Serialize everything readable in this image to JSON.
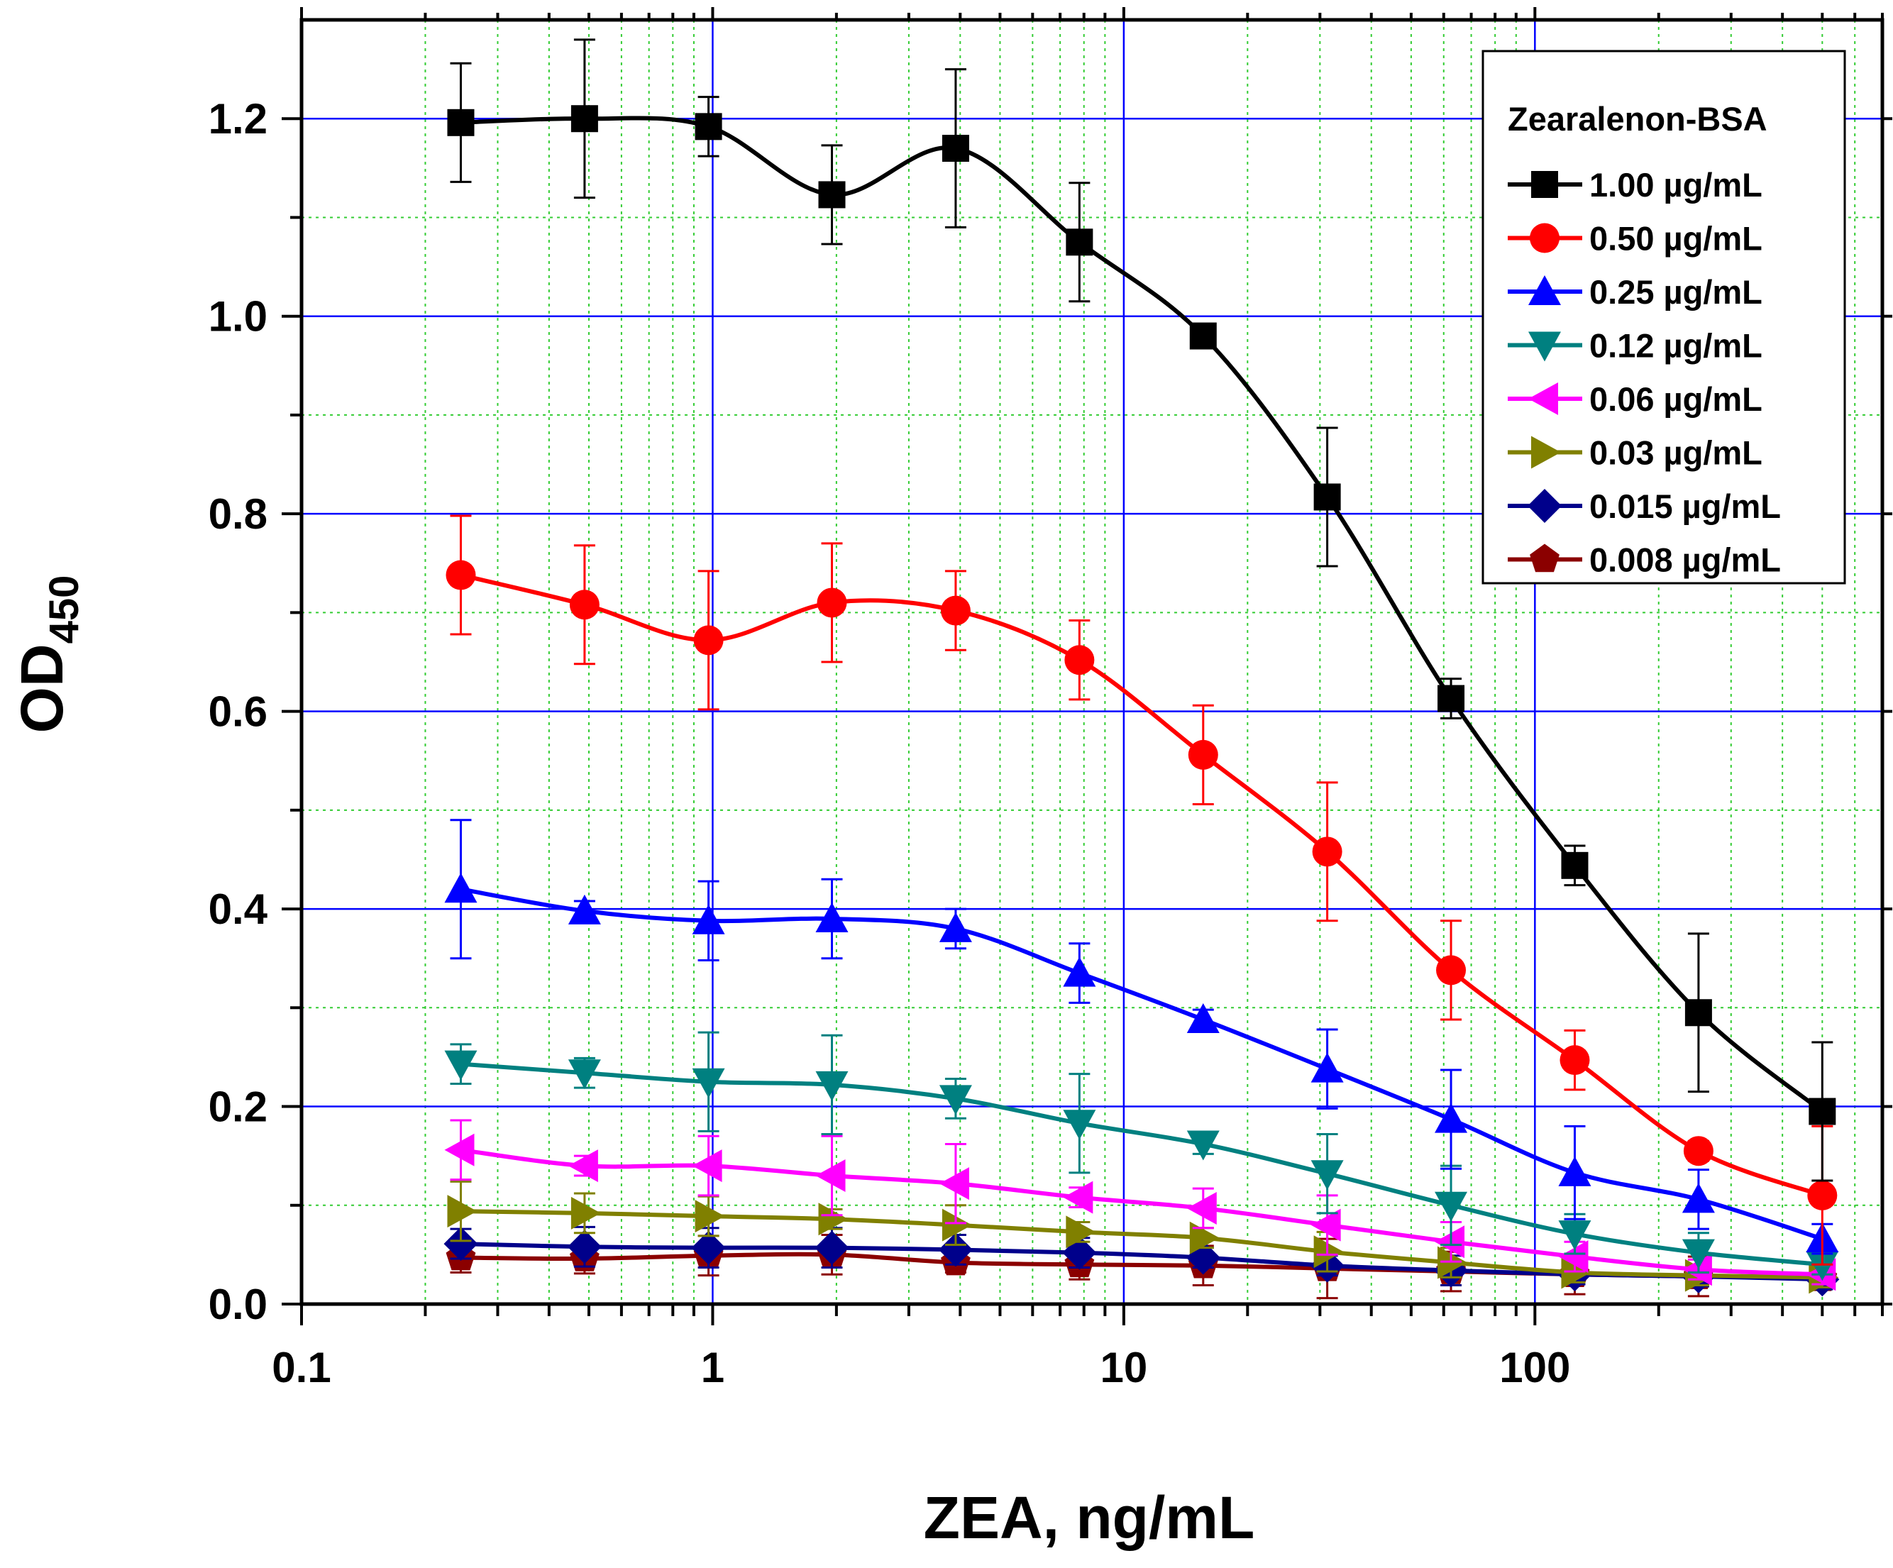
{
  "chart_data": {
    "type": "line",
    "x_scale": "log",
    "xlim": [
      0.1,
      700
    ],
    "ylim": [
      0,
      1.3
    ],
    "xlabel": "ZEA, ng/mL",
    "ylabel": "OD",
    "ylabel_subscript": "450",
    "x_ticks": [
      0.1,
      1,
      10,
      100
    ],
    "x_tick_labels": [
      "0.1",
      "1",
      "10",
      "100"
    ],
    "y_ticks": [
      0,
      0.2,
      0.4,
      0.6,
      0.8,
      1.0,
      1.2
    ],
    "y_tick_labels": [
      "0.0",
      "0.2",
      "0.4",
      "0.6",
      "0.8",
      "1.0",
      "1.2"
    ],
    "legend": {
      "title": "Zearalenon-BSA",
      "position": "top-right"
    },
    "x": [
      0.244,
      0.488,
      0.977,
      1.95,
      3.9,
      7.8,
      15.6,
      31.25,
      62.5,
      125,
      250,
      500
    ],
    "series": [
      {
        "name": "1.00 µg/mL",
        "color": "#000000",
        "marker": "square",
        "values": [
          1.196,
          1.2,
          1.192,
          1.123,
          1.17,
          1.075,
          0.98,
          0.817,
          0.613,
          0.444,
          0.295,
          0.195
        ],
        "errors": [
          0.06,
          0.08,
          0.03,
          0.05,
          0.08,
          0.06,
          0.01,
          0.07,
          0.02,
          0.02,
          0.08,
          0.07
        ]
      },
      {
        "name": "0.50 µg/mL",
        "color": "#ff0000",
        "marker": "circle",
        "values": [
          0.738,
          0.708,
          0.672,
          0.71,
          0.702,
          0.652,
          0.556,
          0.458,
          0.338,
          0.247,
          0.155,
          0.11
        ],
        "errors": [
          0.06,
          0.06,
          0.07,
          0.06,
          0.04,
          0.04,
          0.05,
          0.07,
          0.05,
          0.03,
          0.01,
          0.07
        ]
      },
      {
        "name": "0.25 µg/mL",
        "color": "#0000ff",
        "marker": "triangle-up",
        "values": [
          0.42,
          0.398,
          0.388,
          0.39,
          0.38,
          0.335,
          0.288,
          0.238,
          0.187,
          0.133,
          0.106,
          0.066
        ],
        "errors": [
          0.07,
          0.01,
          0.04,
          0.04,
          0.02,
          0.03,
          0.01,
          0.04,
          0.05,
          0.047,
          0.03,
          0.015
        ]
      },
      {
        "name": "0.12 µg/mL",
        "color": "#008080",
        "marker": "triangle-down",
        "values": [
          0.243,
          0.234,
          0.225,
          0.222,
          0.208,
          0.183,
          0.162,
          0.132,
          0.1,
          0.071,
          0.052,
          0.04
        ],
        "errors": [
          0.02,
          0.015,
          0.05,
          0.05,
          0.02,
          0.05,
          0.01,
          0.04,
          0.04,
          0.02,
          0.02,
          0.01
        ]
      },
      {
        "name": "0.06 µg/mL",
        "color": "#ff00ff",
        "marker": "triangle-left",
        "values": [
          0.156,
          0.14,
          0.14,
          0.13,
          0.122,
          0.108,
          0.097,
          0.08,
          0.063,
          0.048,
          0.035,
          0.03
        ],
        "errors": [
          0.03,
          0.01,
          0.03,
          0.04,
          0.04,
          0.01,
          0.02,
          0.03,
          0.02,
          0.015,
          0.01,
          0.01
        ]
      },
      {
        "name": "0.03 µg/mL",
        "color": "#808000",
        "marker": "triangle-right",
        "values": [
          0.094,
          0.092,
          0.089,
          0.086,
          0.08,
          0.073,
          0.067,
          0.053,
          0.042,
          0.032,
          0.029,
          0.027
        ],
        "errors": [
          0.03,
          0.02,
          0.02,
          0.01,
          0.02,
          0.01,
          0.01,
          0.02,
          0.015,
          0.01,
          0.01,
          0.01
        ]
      },
      {
        "name": "0.015 µg/mL",
        "color": "#00008b",
        "marker": "diamond",
        "values": [
          0.061,
          0.058,
          0.057,
          0.057,
          0.055,
          0.052,
          0.047,
          0.039,
          0.034,
          0.03,
          0.028,
          0.025
        ],
        "errors": [
          0.015,
          0.02,
          0.02,
          0.02,
          0.015,
          0.015,
          0.01,
          0.01,
          0.015,
          0.01,
          0.01,
          0.01
        ]
      },
      {
        "name": "0.008 µg/mL",
        "color": "#8b0000",
        "marker": "pentagon",
        "values": [
          0.047,
          0.046,
          0.049,
          0.05,
          0.042,
          0.04,
          0.039,
          0.036,
          0.033,
          0.03,
          0.028,
          0.026
        ],
        "errors": [
          0.015,
          0.015,
          0.02,
          0.02,
          0.01,
          0.015,
          0.02,
          0.03,
          0.02,
          0.02,
          0.02,
          0.01
        ]
      }
    ]
  }
}
